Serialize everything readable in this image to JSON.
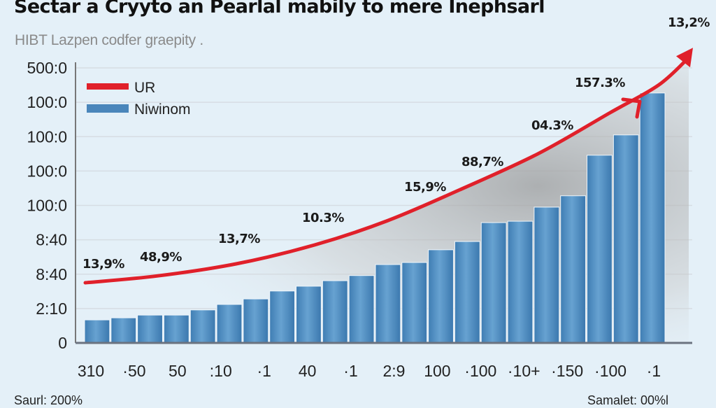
{
  "chart_data": {
    "type": "bar",
    "title": "Sectar a Cryyto an Pearlal mabily to mere Inephsarl",
    "subtitle": "HIBT Lazpen codfer graepity .",
    "xlabel": "",
    "ylabel": "",
    "y_tick_labels": [
      "0",
      "2:10",
      "8:40",
      "8:40",
      "100:0",
      "100:0",
      "100:0",
      "100:0",
      "500:0"
    ],
    "ylim": [
      0,
      8
    ],
    "x_tick_labels": [
      "310",
      "·50",
      "50",
      ":10",
      "·1",
      "40",
      "·1",
      "2:9",
      "100",
      "·100",
      "·10+",
      "·150",
      "·100",
      "·1"
    ],
    "grid": true,
    "legend_position": "top-left",
    "legend": [
      {
        "name": "UR",
        "color": "#e0202a",
        "kind": "line"
      },
      {
        "name": "Niwinom",
        "color": "#4a86bb",
        "kind": "bar"
      }
    ],
    "series": [
      {
        "name": "Niwinom",
        "type": "bar",
        "color": "#4a86bb",
        "values": [
          0.67,
          0.73,
          0.81,
          0.81,
          0.96,
          1.12,
          1.28,
          1.51,
          1.65,
          1.81,
          1.96,
          2.28,
          2.34,
          2.71,
          2.95,
          3.5,
          3.54,
          3.95,
          4.28,
          5.46,
          6.05,
          7.27
        ]
      },
      {
        "name": "UR",
        "type": "line",
        "color": "#e0202a",
        "x_fraction": [
          0.0,
          0.12,
          0.25,
          0.38,
          0.5,
          0.62,
          0.75,
          0.87,
          0.95,
          1.0
        ],
        "values": [
          1.75,
          1.95,
          2.3,
          2.85,
          3.55,
          4.45,
          5.5,
          6.7,
          7.5,
          8.3
        ]
      }
    ],
    "annotations": [
      "13,9%",
      "48,9%",
      "13,7%",
      "10.3%",
      "15,9%",
      "88,7%",
      "04.3%",
      "157.3%",
      "13,2%"
    ]
  },
  "footer": {
    "left": "Saurl: 200%",
    "right": "Samalet: 00%l"
  }
}
